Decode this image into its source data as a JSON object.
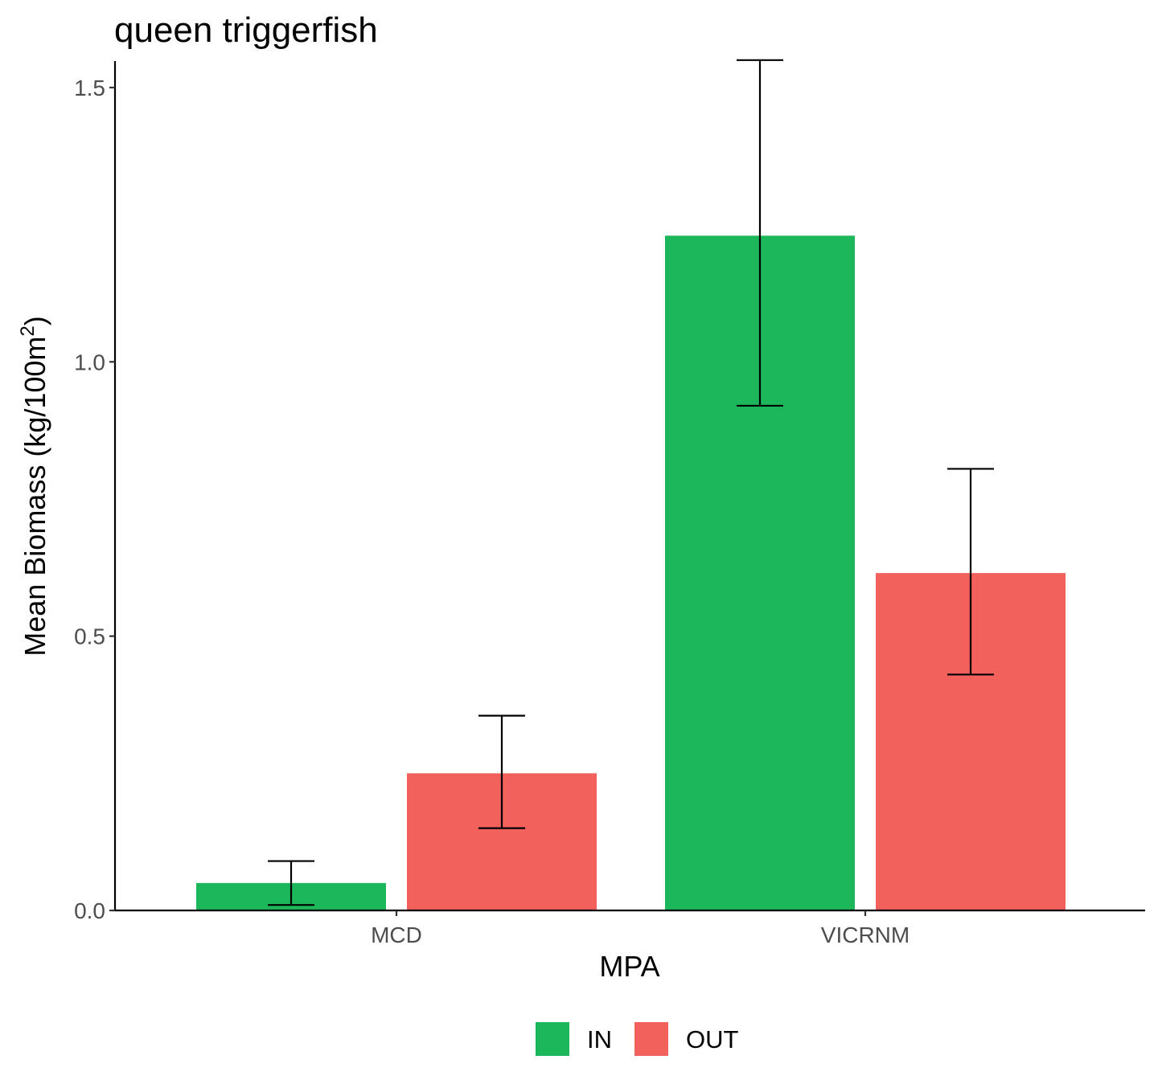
{
  "chart_data": {
    "type": "bar",
    "title": "queen triggerfish",
    "xlabel": "MPA",
    "ylabel": "Mean Biomass (kg/100m",
    "ylabel_superscript": "2",
    "ylabel_suffix": ")",
    "categories": [
      "MCD",
      "VICRNM"
    ],
    "series": [
      {
        "name": "IN",
        "color": "#1cb75a",
        "values": [
          0.05,
          1.23
        ],
        "error_low": [
          0.01,
          0.92
        ],
        "error_high": [
          0.09,
          1.55
        ]
      },
      {
        "name": "OUT",
        "color": "#f2615c",
        "values": [
          0.25,
          0.615
        ],
        "error_low": [
          0.15,
          0.43
        ],
        "error_high": [
          0.355,
          0.805
        ]
      }
    ],
    "ylim": [
      0,
      1.55
    ],
    "yticks": [
      0.0,
      0.5,
      1.0,
      1.5
    ],
    "ytick_labels": [
      "0.0",
      "0.5",
      "1.0",
      "1.5"
    ],
    "grid": false,
    "legend_position": "bottom"
  }
}
